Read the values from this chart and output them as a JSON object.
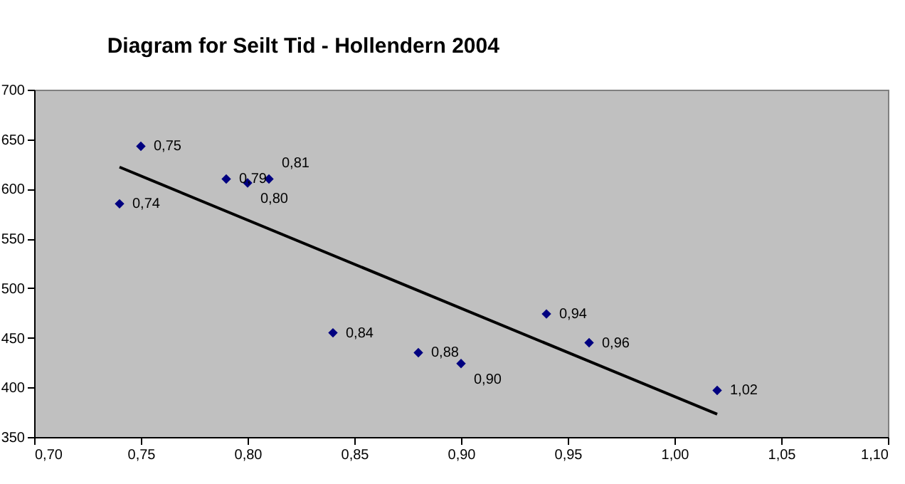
{
  "chart_data": {
    "type": "scatter",
    "title": "Diagram for Seilt Tid - Hollendern 2004",
    "xlim": [
      0.7,
      1.1
    ],
    "xticks": [
      {
        "value": 0.7,
        "label": "0,70"
      },
      {
        "value": 0.75,
        "label": "0,75"
      },
      {
        "value": 0.8,
        "label": "0,80"
      },
      {
        "value": 0.85,
        "label": "0,85"
      },
      {
        "value": 0.9,
        "label": "0,90"
      },
      {
        "value": 0.95,
        "label": "0,95"
      },
      {
        "value": 1.0,
        "label": "1,00"
      },
      {
        "value": 1.05,
        "label": "1,05"
      },
      {
        "value": 1.1,
        "label": "1,10"
      }
    ],
    "ylim": [
      350,
      700
    ],
    "yticks": [
      350,
      400,
      450,
      500,
      550,
      600,
      650,
      700
    ],
    "grid": false,
    "series": [
      {
        "color": "#000080",
        "marker": "diamond",
        "x": [
          0.74,
          0.75,
          0.79,
          0.8,
          0.81,
          0.84,
          0.88,
          0.9,
          0.94,
          0.96,
          1.02
        ],
        "values": [
          585,
          643,
          610,
          606,
          610,
          455,
          435,
          424,
          474,
          445,
          397
        ]
      },
      {
        "type": "line",
        "color": "#000000",
        "x": [
          0.74,
          1.02
        ],
        "values": [
          622,
          373
        ]
      }
    ],
    "annotations": [
      {
        "text": "0,74",
        "x": 0.74,
        "y": 585
      },
      {
        "text": "0,75",
        "x": 0.75,
        "y": 643
      },
      {
        "text": "0,79",
        "x": 0.79,
        "y": 610
      },
      {
        "text": "0,80",
        "x": 0.8,
        "y": 606
      },
      {
        "text": "0,81",
        "x": 0.81,
        "y": 610
      },
      {
        "text": "0,84",
        "x": 0.84,
        "y": 455
      },
      {
        "text": "0,88",
        "x": 0.88,
        "y": 435
      },
      {
        "text": "0,90",
        "x": 0.9,
        "y": 424
      },
      {
        "text": "0,94",
        "x": 0.94,
        "y": 474
      },
      {
        "text": "0,96",
        "x": 0.96,
        "y": 445
      },
      {
        "text": "1,02",
        "x": 1.02,
        "y": 397
      }
    ]
  }
}
